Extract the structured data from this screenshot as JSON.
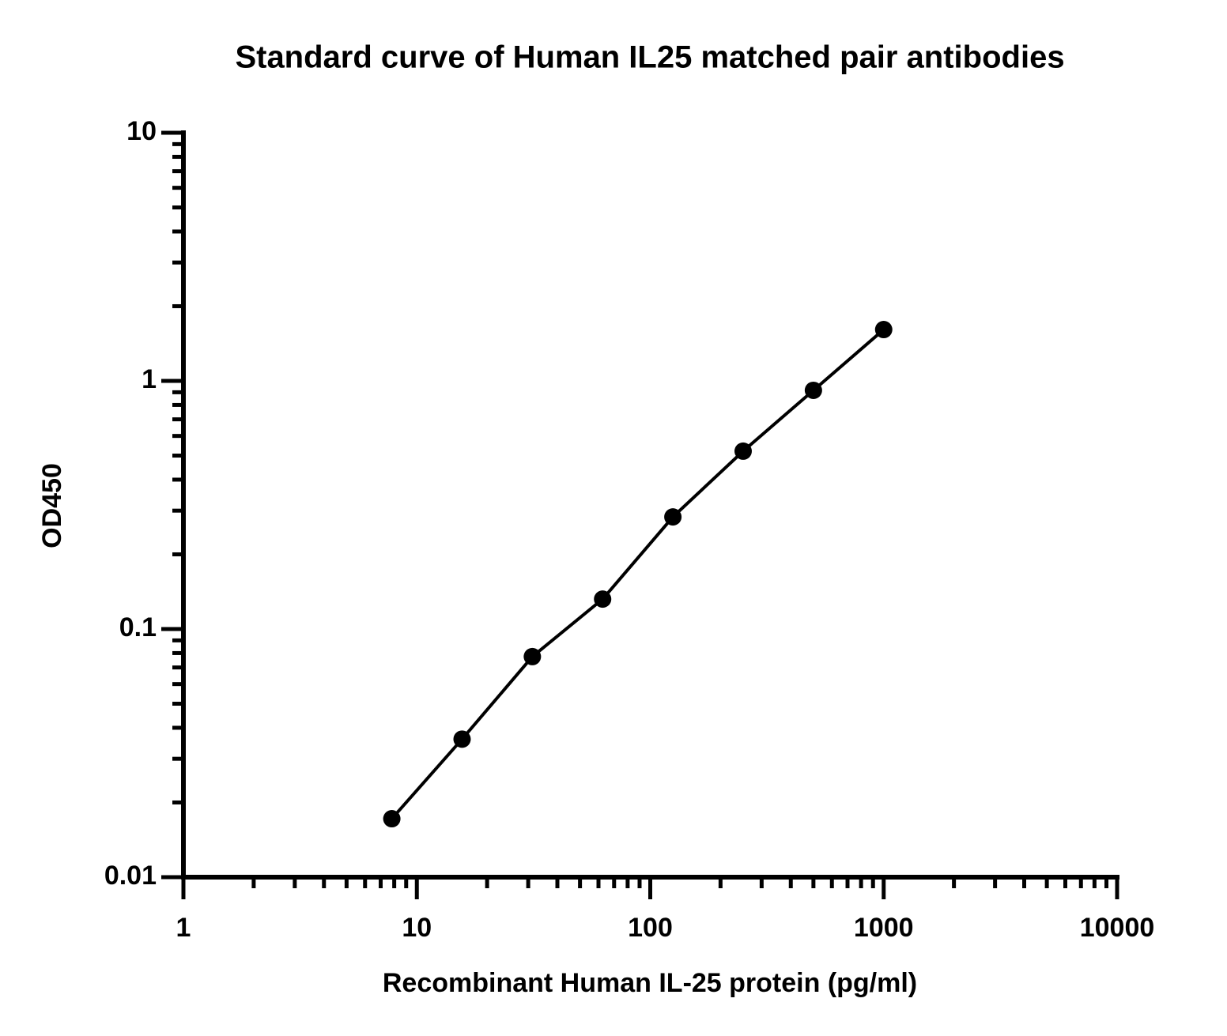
{
  "chart_data": {
    "type": "line-scatter",
    "title": "Standard curve of Human IL25 matched pair antibodies",
    "x_label": "Recombinant Human IL-25 protein (pg/ml)",
    "y_label": "OD450",
    "x": [
      7.8125,
      15.625,
      31.25,
      62.5,
      125,
      250,
      500,
      1000
    ],
    "values": [
      0.0172,
      0.036,
      0.0774,
      0.132,
      0.283,
      0.521,
      0.916,
      1.61
    ],
    "color": "#000000",
    "x_log": true,
    "y_log": true,
    "xlim": [
      1,
      10000
    ],
    "xticks": [
      1,
      10,
      100,
      1000,
      10000
    ],
    "ylim": [
      0.01,
      10
    ],
    "yticks": [
      0.01,
      0.1,
      1,
      10
    ]
  }
}
